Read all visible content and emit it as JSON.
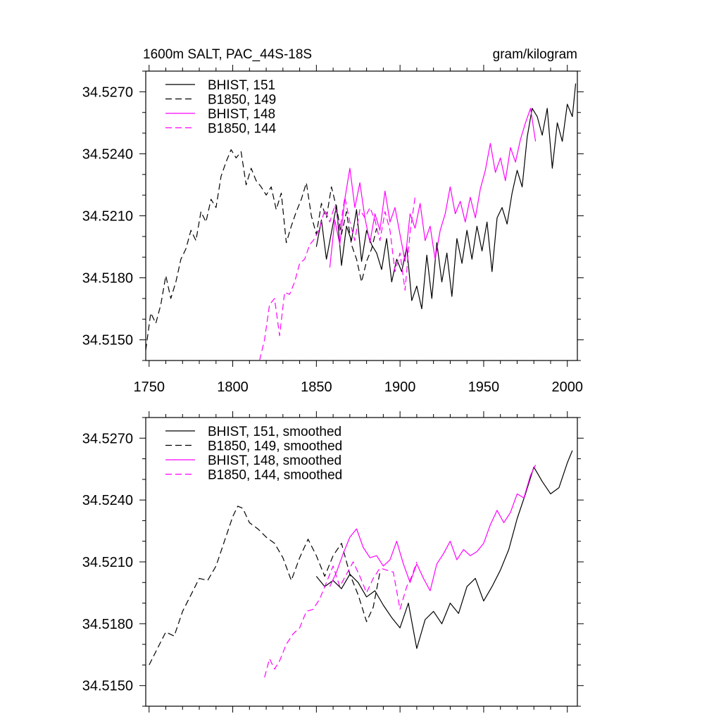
{
  "figure": {
    "title": "1600m SALT, PAC_44S-18S",
    "units": "gram/kilogram"
  },
  "colors": {
    "black": "#000000",
    "magenta": "#ff00ff"
  },
  "chart_data": [
    {
      "type": "line",
      "panel": "top",
      "title": "1600m SALT, PAC_44S-18S",
      "units": "gram/kilogram",
      "xlabel": "",
      "ylabel": "",
      "xlim": [
        1748,
        2006
      ],
      "ylim": [
        34.514,
        34.528
      ],
      "xticks": [
        1750,
        1800,
        1850,
        1900,
        1950,
        2000
      ],
      "xtick_labels": [
        "1750",
        "1800",
        "1850",
        "1900",
        "1950",
        "2000"
      ],
      "yticks": [
        34.515,
        34.518,
        34.521,
        34.524,
        34.527
      ],
      "ytick_labels": [
        "34.5150",
        "34.5180",
        "34.5210",
        "34.5240",
        "34.5270"
      ],
      "legend_position": "top-left",
      "series": [
        {
          "name": "BHIST, 151",
          "color": "#000000",
          "dash": "solid",
          "x": [
            1850,
            1853,
            1856,
            1859,
            1862,
            1865,
            1868,
            1871,
            1874,
            1877,
            1880,
            1883,
            1886,
            1889,
            1892,
            1895,
            1898,
            1901,
            1904,
            1907,
            1910,
            1913,
            1916,
            1919,
            1922,
            1925,
            1928,
            1931,
            1934,
            1937,
            1940,
            1943,
            1946,
            1949,
            1952,
            1955,
            1958,
            1961,
            1964,
            1967,
            1970,
            1973,
            1976,
            1979,
            1982,
            1985,
            1988,
            1991,
            1994,
            1997,
            2000,
            2003,
            2005
          ],
          "y": [
            34.5195,
            34.5208,
            34.5189,
            34.5202,
            34.5215,
            34.5186,
            34.5205,
            34.5198,
            34.5213,
            34.5188,
            34.5203,
            34.5196,
            34.5192,
            34.5184,
            34.5199,
            34.5178,
            34.5189,
            34.5183,
            34.5195,
            34.5169,
            34.5176,
            34.5165,
            34.5191,
            34.517,
            34.5197,
            34.5178,
            34.5192,
            34.5171,
            34.5199,
            34.5187,
            34.5203,
            34.5189,
            34.5205,
            34.5193,
            34.5207,
            34.5183,
            34.5209,
            34.5214,
            34.5206,
            34.5221,
            34.5232,
            34.5224,
            34.5248,
            34.5262,
            34.5258,
            34.5249,
            34.5262,
            34.5233,
            34.5255,
            34.5246,
            34.5264,
            34.5258,
            34.5274
          ]
        },
        {
          "name": "B1850, 149",
          "color": "#000000",
          "dash": "dashed",
          "x": [
            1748,
            1751,
            1754,
            1757,
            1760,
            1763,
            1766,
            1769,
            1772,
            1775,
            1778,
            1781,
            1784,
            1787,
            1790,
            1793,
            1796,
            1799,
            1802,
            1805,
            1808,
            1811,
            1814,
            1817,
            1820,
            1823,
            1826,
            1829,
            1832,
            1835,
            1838,
            1841,
            1844,
            1847,
            1850,
            1853,
            1856,
            1859,
            1862,
            1865,
            1868,
            1871,
            1874,
            1877,
            1880,
            1883,
            1886
          ],
          "y": [
            34.5145,
            34.5163,
            34.5158,
            34.5167,
            34.5181,
            34.517,
            34.5178,
            34.5189,
            34.5194,
            34.5203,
            34.5198,
            34.5212,
            34.5207,
            34.5218,
            34.5214,
            34.5229,
            34.5236,
            34.5242,
            34.5238,
            34.5241,
            34.5225,
            34.5233,
            34.5227,
            34.5224,
            34.522,
            34.5224,
            34.5213,
            34.5221,
            34.5197,
            34.5205,
            34.5212,
            34.5218,
            34.5226,
            34.521,
            34.5201,
            34.5216,
            34.5209,
            34.5224,
            34.5214,
            34.5201,
            34.5212,
            34.5196,
            34.5189,
            34.5178,
            34.5188,
            34.5194,
            34.5204
          ]
        },
        {
          "name": "BHIST, 148",
          "color": "#ff00ff",
          "dash": "solid",
          "x": [
            1858,
            1861,
            1864,
            1867,
            1870,
            1873,
            1876,
            1879,
            1882,
            1885,
            1888,
            1891,
            1894,
            1897,
            1900,
            1903,
            1906,
            1909,
            1912,
            1915,
            1918,
            1921,
            1924,
            1927,
            1930,
            1933,
            1936,
            1939,
            1942,
            1945,
            1948,
            1951,
            1954,
            1957,
            1960,
            1963,
            1966,
            1969,
            1972,
            1975,
            1978,
            1981
          ],
          "y": [
            34.5185,
            34.5208,
            34.5196,
            34.5218,
            34.5233,
            34.5214,
            34.5226,
            34.5209,
            34.5197,
            34.5211,
            34.5203,
            34.5222,
            34.5207,
            34.5214,
            34.5201,
            34.5188,
            34.5211,
            34.5204,
            34.5216,
            34.5198,
            34.5205,
            34.5189,
            34.5203,
            34.5211,
            34.5224,
            34.5211,
            34.5217,
            34.5207,
            34.5219,
            34.5209,
            34.5223,
            34.5232,
            34.5245,
            34.5231,
            34.5238,
            34.5227,
            34.5243,
            34.5236,
            34.5247,
            34.5255,
            34.5262,
            34.5246
          ]
        },
        {
          "name": "B1850, 144",
          "color": "#ff00ff",
          "dash": "dashed",
          "x": [
            1816,
            1819,
            1822,
            1825,
            1828,
            1831,
            1834,
            1837,
            1840,
            1843,
            1846,
            1849,
            1852,
            1855,
            1858,
            1861,
            1864,
            1867,
            1870,
            1873,
            1876,
            1879,
            1882,
            1885,
            1888,
            1891,
            1894,
            1897,
            1900,
            1903,
            1906,
            1909
          ],
          "y": [
            34.514,
            34.515,
            34.5167,
            34.517,
            34.5152,
            34.5173,
            34.5172,
            34.5178,
            34.5187,
            34.5189,
            34.5196,
            34.5199,
            34.5204,
            34.5213,
            34.5207,
            34.5215,
            34.5203,
            34.5219,
            34.5207,
            34.5198,
            34.5213,
            34.5209,
            34.5214,
            34.5208,
            34.5198,
            34.5212,
            34.5203,
            34.5183,
            34.5192,
            34.5174,
            34.5202,
            34.5219
          ]
        }
      ]
    },
    {
      "type": "line",
      "panel": "bottom",
      "xlabel": "",
      "ylabel": "",
      "xlim": [
        1748,
        2006
      ],
      "ylim": [
        34.514,
        34.528
      ],
      "xticks": [
        1750,
        1800,
        1850,
        1900,
        1950,
        2000
      ],
      "yticks": [
        34.515,
        34.518,
        34.521,
        34.524,
        34.527
      ],
      "ytick_labels": [
        "34.5150",
        "34.5180",
        "34.5210",
        "34.5240",
        "34.5270"
      ],
      "legend_position": "top-left",
      "series": [
        {
          "name": "BHIST, 151, smoothed",
          "color": "#000000",
          "dash": "solid",
          "x": [
            1850,
            1855,
            1860,
            1865,
            1870,
            1875,
            1880,
            1885,
            1890,
            1895,
            1900,
            1905,
            1910,
            1915,
            1920,
            1925,
            1930,
            1935,
            1940,
            1945,
            1950,
            1955,
            1960,
            1965,
            1970,
            1975,
            1980,
            1985,
            1990,
            1995,
            2000,
            2003
          ],
          "y": [
            34.5203,
            34.5198,
            34.5201,
            34.5197,
            34.5204,
            34.52,
            34.5193,
            34.5196,
            34.5189,
            34.5183,
            34.5178,
            34.519,
            34.5168,
            34.5182,
            34.5186,
            34.518,
            34.519,
            34.5185,
            34.5198,
            34.5202,
            34.5191,
            34.5198,
            34.5206,
            34.5216,
            34.5231,
            34.5243,
            34.5256,
            34.5249,
            34.5243,
            34.5246,
            34.5258,
            34.5264
          ]
        },
        {
          "name": "B1850, 149, smoothed",
          "color": "#000000",
          "dash": "dashed",
          "x": [
            1750,
            1755,
            1760,
            1765,
            1770,
            1775,
            1780,
            1785,
            1790,
            1795,
            1800,
            1803,
            1806,
            1810,
            1815,
            1820,
            1825,
            1830,
            1835,
            1840,
            1845,
            1850,
            1855,
            1860,
            1865,
            1870,
            1875,
            1880,
            1884,
            1888
          ],
          "y": [
            34.516,
            34.5168,
            34.5176,
            34.5174,
            34.5186,
            34.5194,
            34.5202,
            34.5201,
            34.5208,
            34.522,
            34.5232,
            34.5237,
            34.5236,
            34.5229,
            34.5226,
            34.5222,
            34.5219,
            34.5212,
            34.5201,
            34.5212,
            34.5221,
            34.5213,
            34.5203,
            34.5213,
            34.5219,
            34.5204,
            34.5194,
            34.5181,
            34.5188,
            34.5205
          ]
        },
        {
          "name": "BHIST, 148, smoothed",
          "color": "#ff00ff",
          "dash": "solid",
          "x": [
            1858,
            1862,
            1866,
            1870,
            1874,
            1878,
            1882,
            1886,
            1890,
            1894,
            1898,
            1902,
            1906,
            1910,
            1914,
            1918,
            1922,
            1926,
            1930,
            1934,
            1938,
            1942,
            1946,
            1950,
            1954,
            1958,
            1962,
            1966,
            1970,
            1974,
            1978,
            1981
          ],
          "y": [
            34.5198,
            34.5205,
            34.5214,
            34.5222,
            34.5226,
            34.5217,
            34.5212,
            34.5213,
            34.5208,
            34.5211,
            34.522,
            34.5209,
            34.52,
            34.5209,
            34.5202,
            34.5196,
            34.5209,
            34.5214,
            34.522,
            34.5211,
            34.5216,
            34.5213,
            34.5215,
            34.5219,
            34.5228,
            34.5235,
            34.5229,
            34.5234,
            34.5243,
            34.5241,
            34.5252,
            34.5257
          ]
        },
        {
          "name": "B1850, 144, smoothed",
          "color": "#ff00ff",
          "dash": "dashed",
          "x": [
            1819,
            1822,
            1825,
            1828,
            1832,
            1836,
            1840,
            1844,
            1848,
            1852,
            1856,
            1860,
            1864,
            1868,
            1872,
            1876,
            1880,
            1884,
            1888,
            1892,
            1896,
            1900,
            1904,
            1907,
            1910
          ],
          "y": [
            34.5154,
            34.5163,
            34.5158,
            34.5162,
            34.517,
            34.5175,
            34.5178,
            34.5186,
            34.5187,
            34.5192,
            34.52,
            34.5208,
            34.5198,
            34.5204,
            34.521,
            34.5203,
            34.5195,
            34.5202,
            34.5207,
            34.5206,
            34.5205,
            34.5187,
            34.5198,
            34.5203,
            34.521
          ]
        }
      ]
    }
  ]
}
